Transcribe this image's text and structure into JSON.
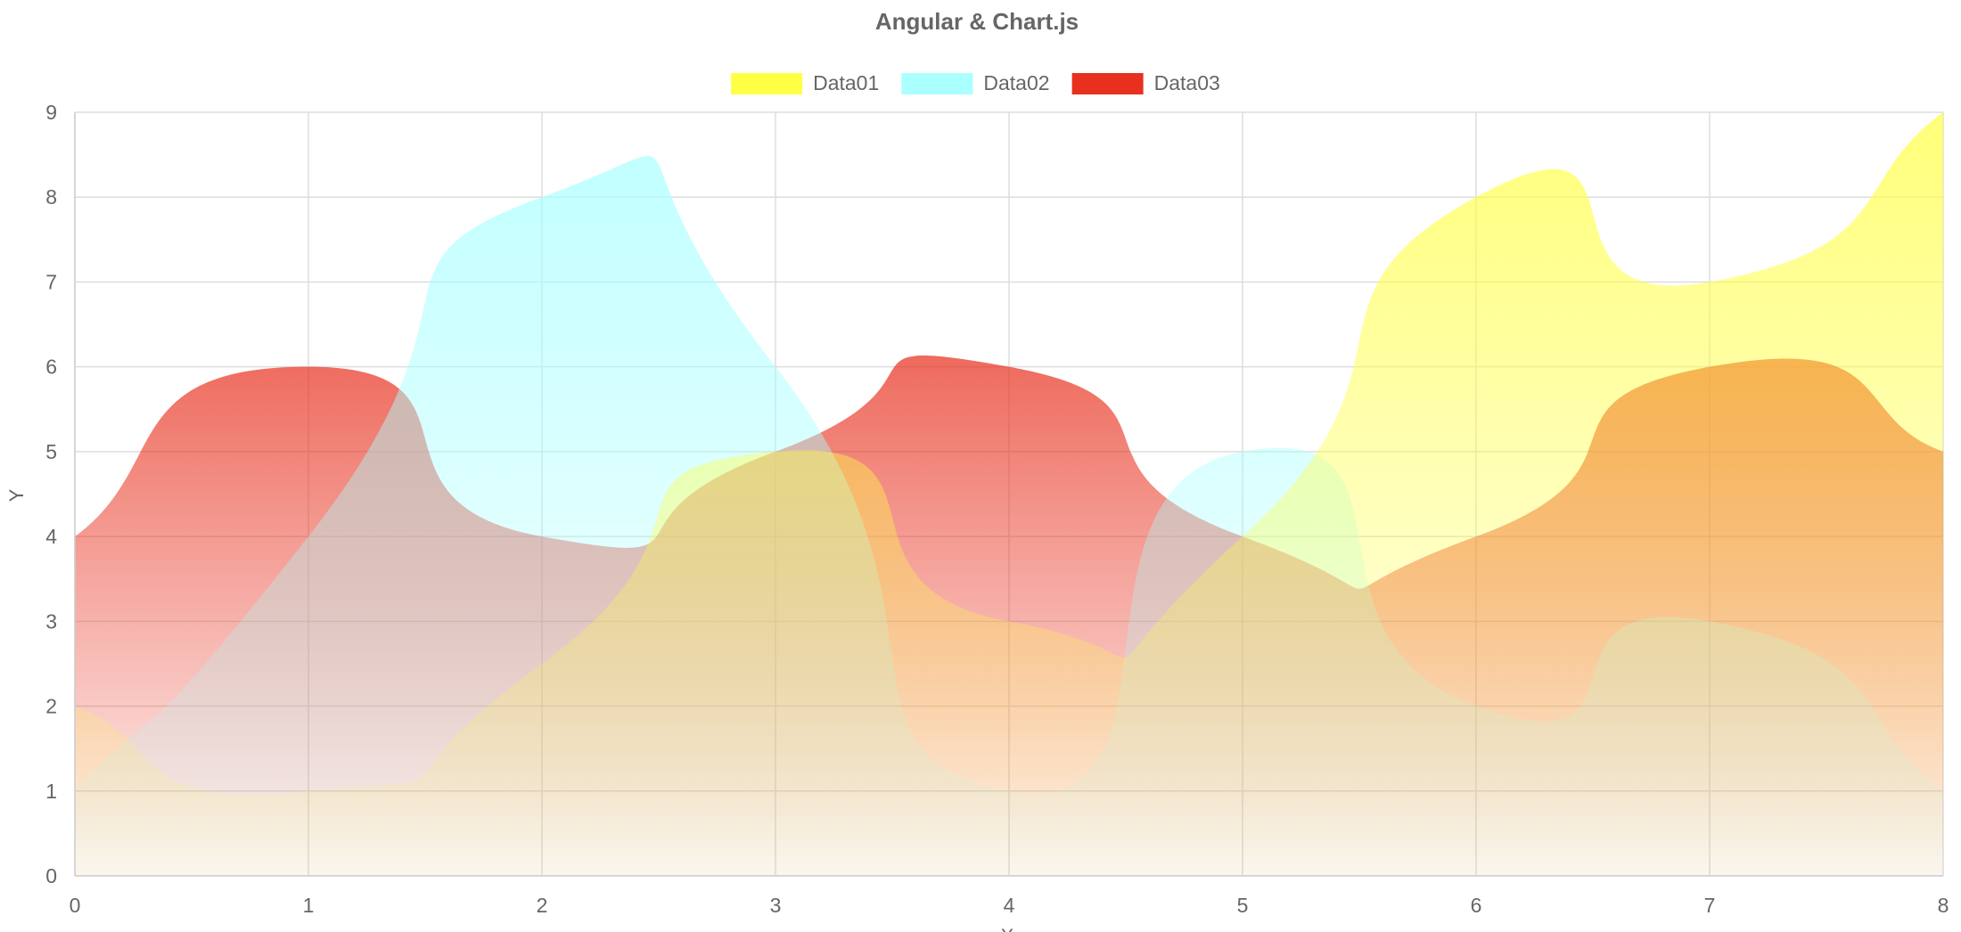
{
  "chart_data": {
    "type": "area",
    "title": "Angular & Chart.js",
    "xlabel": "X",
    "ylabel": "Y",
    "x": [
      0,
      1,
      2,
      3,
      4,
      5,
      6,
      7,
      8
    ],
    "xlim": [
      0,
      8
    ],
    "ylim": [
      0,
      9
    ],
    "xticks": [
      "0",
      "1",
      "2",
      "3",
      "4",
      "5",
      "6",
      "7",
      "8"
    ],
    "yticks": [
      "0",
      "1",
      "2",
      "3",
      "4",
      "5",
      "6",
      "7",
      "8",
      "9"
    ],
    "grid": true,
    "legend_position": "top",
    "series": [
      {
        "name": "Data01",
        "color": "#ffff44",
        "values": [
          2,
          1,
          2.5,
          5,
          3,
          4,
          8,
          7,
          9
        ]
      },
      {
        "name": "Data02",
        "color": "#aaffff",
        "values": [
          1,
          4,
          8,
          6,
          1,
          5,
          2,
          3,
          1
        ]
      },
      {
        "name": "Data03",
        "color": "#e8301e",
        "values": [
          4,
          6,
          4,
          5,
          6,
          4,
          4,
          6,
          5
        ]
      }
    ]
  }
}
